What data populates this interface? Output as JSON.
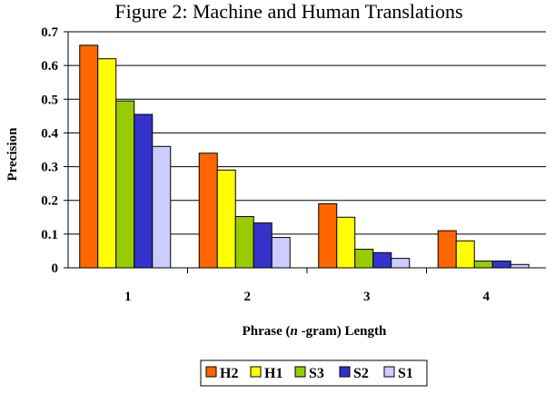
{
  "chart_data": {
    "type": "bar",
    "title": "Figure 2: Machine and Human Translations",
    "xlabel_parts": [
      "Phrase (",
      "n",
      " -gram) Length"
    ],
    "ylabel": "Precision",
    "categories": [
      "1",
      "2",
      "3",
      "4"
    ],
    "ylim": [
      0,
      0.7
    ],
    "yticks": [
      "0",
      "0.1",
      "0.2",
      "0.3",
      "0.4",
      "0.5",
      "0.6",
      "0.7"
    ],
    "grid": true,
    "legend_position": "bottom",
    "series": [
      {
        "name": "H2",
        "color": "#FF6600",
        "values": [
          0.66,
          0.34,
          0.19,
          0.11
        ]
      },
      {
        "name": "H1",
        "color": "#FFFF00",
        "values": [
          0.62,
          0.29,
          0.15,
          0.08
        ]
      },
      {
        "name": "S3",
        "color": "#99CC00",
        "values": [
          0.495,
          0.152,
          0.055,
          0.02
        ]
      },
      {
        "name": "S2",
        "color": "#3333CC",
        "values": [
          0.455,
          0.133,
          0.045,
          0.02
        ]
      },
      {
        "name": "S1",
        "color": "#CCCCFF",
        "values": [
          0.36,
          0.09,
          0.028,
          0.01
        ]
      }
    ]
  }
}
